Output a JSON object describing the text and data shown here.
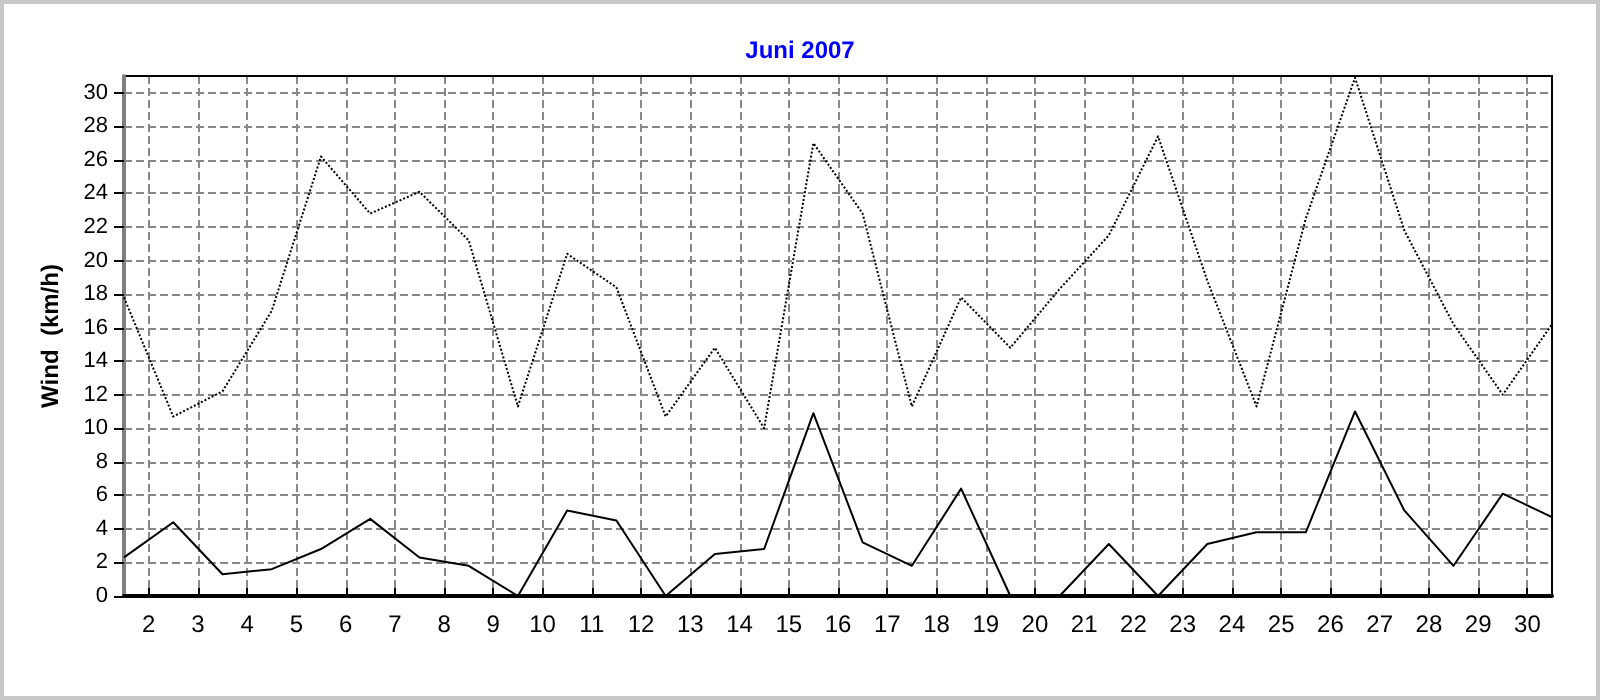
{
  "chart_data": {
    "type": "line",
    "title": "Juni 2007",
    "ylabel": "Wind  (km/h)",
    "x": [
      1.5,
      2.5,
      3.5,
      4.5,
      5.5,
      6.5,
      7.5,
      8.5,
      9.5,
      10.5,
      11.5,
      12.5,
      13.5,
      14.5,
      15.5,
      16.5,
      17.5,
      18.5,
      19.5,
      20.5,
      21.5,
      22.5,
      23.5,
      24.5,
      25.5,
      26.5,
      27.5,
      28.5,
      29.5,
      30.5
    ],
    "series": [
      {
        "color": "#000000",
        "line_style": "dotted",
        "values": [
          17.8,
          10.7,
          12.2,
          17,
          26.2,
          22.8,
          24.1,
          21.2,
          11.3,
          20.4,
          18.4,
          10.7,
          14.8,
          10,
          27,
          22.8,
          11.3,
          17.8,
          14.8,
          18.3,
          21.5,
          27.4,
          18.8,
          11.3,
          22.5,
          30.9,
          21.8,
          16.2,
          12,
          16.2
        ]
      },
      {
        "color": "#000000",
        "line_style": "solid",
        "values": [
          2.3,
          4.4,
          1.3,
          1.6,
          2.8,
          4.6,
          2.3,
          1.8,
          0,
          5.1,
          4.5,
          0,
          2.5,
          2.8,
          10.9,
          3.2,
          1.8,
          6.4,
          0,
          0,
          3.1,
          0,
          3.1,
          3.8,
          3.8,
          11,
          5.1,
          1.8,
          6.1,
          4.7
        ]
      }
    ],
    "xlim": [
      1.5,
      30.5
    ],
    "xticks": [
      2,
      3,
      4,
      5,
      6,
      7,
      8,
      9,
      10,
      11,
      12,
      13,
      14,
      15,
      16,
      17,
      18,
      19,
      20,
      21,
      22,
      23,
      24,
      25,
      26,
      27,
      28,
      29,
      30
    ],
    "ylim": [
      0,
      31
    ],
    "yticks": [
      0,
      2,
      4,
      6,
      8,
      10,
      12,
      14,
      16,
      18,
      20,
      22,
      24,
      26,
      28,
      30
    ],
    "grid": true,
    "marker": "none",
    "legend": false
  }
}
